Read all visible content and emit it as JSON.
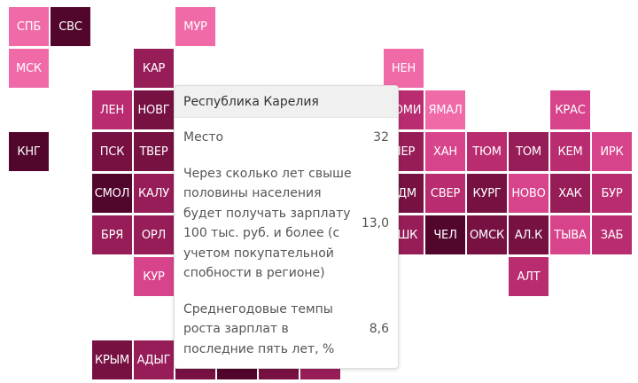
{
  "colors": {
    "c1": "#f06aa8",
    "c2": "#d8448c",
    "c3": "#b92c70",
    "c4": "#971d58",
    "c5": "#761142",
    "c6": "#52062c"
  },
  "regions": [
    {
      "label": "СПБ",
      "col": 0,
      "row": 0,
      "color": "c1"
    },
    {
      "label": "СВС",
      "col": 1,
      "row": 0,
      "color": "c6"
    },
    {
      "label": "МУР",
      "col": 4,
      "row": 0,
      "color": "c1"
    },
    {
      "label": "МСК",
      "col": 0,
      "row": 1,
      "color": "c1"
    },
    {
      "label": "КАР",
      "col": 3,
      "row": 1,
      "color": "c4"
    },
    {
      "label": "НЕН",
      "col": 9,
      "row": 1,
      "color": "c1"
    },
    {
      "label": "ЛЕН",
      "col": 2,
      "row": 2,
      "color": "c3"
    },
    {
      "label": "НОВГ",
      "col": 3,
      "row": 2,
      "color": "c5"
    },
    {
      "label": "КОМИ",
      "col": 9,
      "row": 2,
      "color": "c3"
    },
    {
      "label": "ЯМАЛ",
      "col": 10,
      "row": 2,
      "color": "c1"
    },
    {
      "label": "КРАС",
      "col": 13,
      "row": 2,
      "color": "c2"
    },
    {
      "label": "КНГ",
      "col": 0,
      "row": 3,
      "color": "c6"
    },
    {
      "label": "ПСК",
      "col": 2,
      "row": 3,
      "color": "c5"
    },
    {
      "label": "ТВЕР",
      "col": 3,
      "row": 3,
      "color": "c5"
    },
    {
      "label": "ПЕР",
      "col": 9,
      "row": 3,
      "color": "c4"
    },
    {
      "label": "ХАН",
      "col": 10,
      "row": 3,
      "color": "c2"
    },
    {
      "label": "ТЮМ",
      "col": 11,
      "row": 3,
      "color": "c3"
    },
    {
      "label": "ТОМ",
      "col": 12,
      "row": 3,
      "color": "c4"
    },
    {
      "label": "КЕМ",
      "col": 13,
      "row": 3,
      "color": "c3"
    },
    {
      "label": "ИРК",
      "col": 14,
      "row": 3,
      "color": "c2"
    },
    {
      "label": "СМОЛ",
      "col": 2,
      "row": 4,
      "color": "c6"
    },
    {
      "label": "КАЛУ",
      "col": 3,
      "row": 4,
      "color": "c4"
    },
    {
      "label": "УДМ",
      "col": 9,
      "row": 4,
      "color": "c5"
    },
    {
      "label": "СВЕР",
      "col": 10,
      "row": 4,
      "color": "c3"
    },
    {
      "label": "КУРГ",
      "col": 11,
      "row": 4,
      "color": "c5"
    },
    {
      "label": "НОВО",
      "col": 12,
      "row": 4,
      "color": "c2"
    },
    {
      "label": "ХАК",
      "col": 13,
      "row": 4,
      "color": "c4"
    },
    {
      "label": "БУР",
      "col": 14,
      "row": 4,
      "color": "c3"
    },
    {
      "label": "БРЯ",
      "col": 2,
      "row": 5,
      "color": "c4"
    },
    {
      "label": "ОРЛ",
      "col": 3,
      "row": 5,
      "color": "c4"
    },
    {
      "label": "БШК",
      "col": 9,
      "row": 5,
      "color": "c4"
    },
    {
      "label": "ЧЕЛ",
      "col": 10,
      "row": 5,
      "color": "c6"
    },
    {
      "label": "ОМСК",
      "col": 11,
      "row": 5,
      "color": "c5"
    },
    {
      "label": "АЛ.К",
      "col": 12,
      "row": 5,
      "color": "c5"
    },
    {
      "label": "ТЫВА",
      "col": 13,
      "row": 5,
      "color": "c2"
    },
    {
      "label": "ЗАБ",
      "col": 14,
      "row": 5,
      "color": "c3"
    },
    {
      "label": "КУР",
      "col": 3,
      "row": 6,
      "color": "c2"
    },
    {
      "label": "АЛТ",
      "col": 12,
      "row": 6,
      "color": "c3"
    },
    {
      "label": "КРЫМ",
      "col": 2,
      "row": 8,
      "color": "c5"
    },
    {
      "label": "АДЫГ",
      "col": 3,
      "row": 8,
      "color": "c4"
    },
    {
      "label": "",
      "col": 4,
      "row": 8,
      "color": "c5"
    },
    {
      "label": "",
      "col": 5,
      "row": 8,
      "color": "c6"
    },
    {
      "label": "",
      "col": 6,
      "row": 8,
      "color": "c5"
    },
    {
      "label": "",
      "col": 7,
      "row": 8,
      "color": "c4"
    }
  ],
  "tooltip": {
    "title": "Республика Карелия",
    "rows": [
      {
        "label": "Место",
        "value": "32"
      },
      {
        "label": "Через сколько лет свыше половины населения будет получать зарплату 100 тыс. руб. и более (с учетом покупательной спобности в регионе)",
        "value": "13,0"
      },
      {
        "label": "Среднегодовые темпы роста зарплат в последние пять лет, %",
        "value": "8,6"
      }
    ]
  }
}
